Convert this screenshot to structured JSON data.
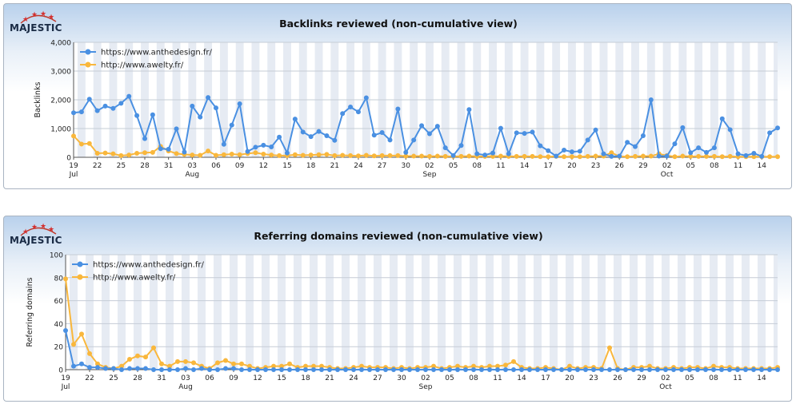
{
  "brand": {
    "logo_text": "MAJESTIC"
  },
  "colors": {
    "series1": "#4a90e2",
    "series2": "#f9b73c"
  },
  "chart_data": [
    {
      "type": "line",
      "title": "Backlinks reviewed (non-cumulative view)",
      "ylabel": "Backlinks",
      "xlabel": "",
      "ylim": [
        0,
        4000
      ],
      "yticks": [
        "0",
        "1,000",
        "2,000",
        "3,000",
        "4,000"
      ],
      "ytick_values": [
        0,
        1000,
        2000,
        3000,
        4000
      ],
      "legend_position": "top-left",
      "x_day_labels": [
        {
          "i": 0,
          "label": "19"
        },
        {
          "i": 3,
          "label": "22"
        },
        {
          "i": 6,
          "label": "25"
        },
        {
          "i": 9,
          "label": "28"
        },
        {
          "i": 12,
          "label": "31"
        },
        {
          "i": 15,
          "label": "03"
        },
        {
          "i": 18,
          "label": "06"
        },
        {
          "i": 21,
          "label": "09"
        },
        {
          "i": 24,
          "label": "12"
        },
        {
          "i": 27,
          "label": "15"
        },
        {
          "i": 30,
          "label": "18"
        },
        {
          "i": 33,
          "label": "21"
        },
        {
          "i": 36,
          "label": "24"
        },
        {
          "i": 39,
          "label": "27"
        },
        {
          "i": 42,
          "label": "30"
        },
        {
          "i": 45,
          "label": "02"
        },
        {
          "i": 48,
          "label": "05"
        },
        {
          "i": 51,
          "label": "08"
        },
        {
          "i": 54,
          "label": "11"
        },
        {
          "i": 57,
          "label": "14"
        },
        {
          "i": 60,
          "label": "17"
        },
        {
          "i": 63,
          "label": "20"
        },
        {
          "i": 66,
          "label": "23"
        },
        {
          "i": 69,
          "label": "26"
        },
        {
          "i": 72,
          "label": "29"
        },
        {
          "i": 75,
          "label": "02"
        },
        {
          "i": 78,
          "label": "05"
        },
        {
          "i": 81,
          "label": "08"
        },
        {
          "i": 84,
          "label": "11"
        },
        {
          "i": 87,
          "label": "14"
        }
      ],
      "x_month_labels": [
        {
          "i": 0,
          "label": "Jul"
        },
        {
          "i": 15,
          "label": "Aug"
        },
        {
          "i": 45,
          "label": "Sep"
        },
        {
          "i": 75,
          "label": "Oct"
        }
      ],
      "series": [
        {
          "name": "https://www.anthedesign.fr/",
          "values": [
            1550,
            1580,
            2020,
            1620,
            1780,
            1700,
            1880,
            2120,
            1450,
            650,
            1480,
            300,
            280,
            990,
            180,
            1780,
            1400,
            2080,
            1720,
            450,
            1120,
            1860,
            200,
            350,
            420,
            360,
            700,
            150,
            1330,
            880,
            720,
            900,
            750,
            590,
            1520,
            1750,
            1580,
            2070,
            770,
            860,
            600,
            1680,
            170,
            600,
            1100,
            820,
            1080,
            330,
            60,
            410,
            1660,
            120,
            80,
            150,
            1010,
            120,
            850,
            830,
            880,
            400,
            230,
            40,
            250,
            190,
            210,
            600,
            950,
            120,
            30,
            40,
            520,
            370,
            750,
            2000,
            40,
            40,
            470,
            1030,
            160,
            330,
            170,
            330,
            1340,
            960,
            120,
            60,
            140,
            30,
            850,
            1020
          ]
        },
        {
          "name": "http://www.awelty.fr/",
          "values": [
            740,
            460,
            480,
            140,
            150,
            120,
            60,
            80,
            140,
            160,
            170,
            380,
            220,
            130,
            100,
            80,
            70,
            220,
            70,
            90,
            110,
            90,
            130,
            160,
            110,
            80,
            60,
            60,
            90,
            70,
            80,
            90,
            100,
            60,
            70,
            60,
            50,
            70,
            50,
            60,
            60,
            60,
            40,
            40,
            40,
            30,
            40,
            30,
            30,
            30,
            40,
            30,
            30,
            30,
            40,
            30,
            30,
            30,
            30,
            20,
            20,
            30,
            20,
            20,
            20,
            30,
            40,
            40,
            160,
            30,
            20,
            30,
            40,
            40,
            120,
            60,
            20,
            40,
            30,
            30,
            30,
            30,
            20,
            30,
            20,
            20,
            20,
            20,
            20,
            20
          ]
        }
      ]
    },
    {
      "type": "line",
      "title": "Referring domains reviewed (non-cumulative view)",
      "ylabel": "Referring domains",
      "xlabel": "",
      "ylim": [
        0,
        100
      ],
      "yticks": [
        "0",
        "20",
        "40",
        "60",
        "80",
        "100"
      ],
      "ytick_values": [
        0,
        20,
        40,
        60,
        80,
        100
      ],
      "legend_position": "top-left",
      "x_day_labels": [
        {
          "i": 0,
          "label": "19"
        },
        {
          "i": 3,
          "label": "22"
        },
        {
          "i": 6,
          "label": "25"
        },
        {
          "i": 9,
          "label": "28"
        },
        {
          "i": 12,
          "label": "31"
        },
        {
          "i": 15,
          "label": "03"
        },
        {
          "i": 18,
          "label": "06"
        },
        {
          "i": 21,
          "label": "09"
        },
        {
          "i": 24,
          "label": "12"
        },
        {
          "i": 27,
          "label": "15"
        },
        {
          "i": 30,
          "label": "18"
        },
        {
          "i": 33,
          "label": "21"
        },
        {
          "i": 36,
          "label": "24"
        },
        {
          "i": 39,
          "label": "27"
        },
        {
          "i": 42,
          "label": "30"
        },
        {
          "i": 45,
          "label": "02"
        },
        {
          "i": 48,
          "label": "05"
        },
        {
          "i": 51,
          "label": "08"
        },
        {
          "i": 54,
          "label": "11"
        },
        {
          "i": 57,
          "label": "14"
        },
        {
          "i": 60,
          "label": "17"
        },
        {
          "i": 63,
          "label": "20"
        },
        {
          "i": 66,
          "label": "23"
        },
        {
          "i": 69,
          "label": "26"
        },
        {
          "i": 72,
          "label": "29"
        },
        {
          "i": 75,
          "label": "02"
        },
        {
          "i": 78,
          "label": "05"
        },
        {
          "i": 81,
          "label": "08"
        },
        {
          "i": 84,
          "label": "11"
        },
        {
          "i": 87,
          "label": "14"
        }
      ],
      "x_month_labels": [
        {
          "i": 0,
          "label": "Jul"
        },
        {
          "i": 15,
          "label": "Aug"
        },
        {
          "i": 45,
          "label": "Sep"
        },
        {
          "i": 75,
          "label": "Oct"
        }
      ],
      "series": [
        {
          "name": "https://www.anthedesign.fr/",
          "values": [
            34,
            3,
            5,
            2,
            2,
            1,
            1,
            0,
            1,
            1,
            1,
            0,
            0,
            0,
            0,
            1,
            0,
            1,
            0,
            0,
            1,
            1,
            0,
            0,
            0,
            0,
            0,
            0,
            0,
            0,
            0,
            0,
            0,
            0,
            0,
            0,
            0,
            0,
            0,
            0,
            0,
            0,
            0,
            0,
            0,
            0,
            0,
            0,
            0,
            0,
            0,
            0,
            0,
            0,
            0,
            0,
            0,
            0,
            0,
            0,
            0,
            0,
            0,
            0,
            0,
            0,
            0,
            0,
            0,
            0,
            0,
            0,
            0,
            0,
            0,
            0,
            0,
            0,
            0,
            0,
            0,
            0,
            0,
            0,
            0,
            0,
            0,
            0,
            0,
            0
          ]
        },
        {
          "name": "http://www.awelty.fr/",
          "values": [
            79,
            22,
            31,
            14,
            5,
            2,
            1,
            3,
            9,
            12,
            11,
            19,
            5,
            3,
            7,
            7,
            6,
            3,
            1,
            6,
            8,
            5,
            5,
            3,
            1,
            2,
            3,
            3,
            5,
            2,
            3,
            3,
            3,
            2,
            1,
            1,
            2,
            3,
            2,
            2,
            2,
            1,
            2,
            1,
            2,
            2,
            3,
            1,
            2,
            3,
            2,
            3,
            2,
            3,
            3,
            4,
            7,
            2,
            1,
            1,
            2,
            1,
            0,
            3,
            1,
            2,
            2,
            1,
            19,
            1,
            0,
            2,
            2,
            3,
            1,
            1,
            2,
            1,
            2,
            2,
            1,
            3,
            2,
            2,
            1,
            1,
            1,
            1,
            1,
            2
          ]
        }
      ]
    }
  ]
}
